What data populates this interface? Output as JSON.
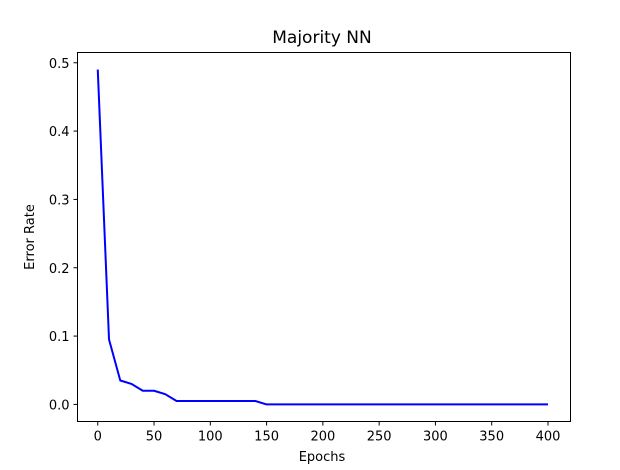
{
  "chart_data": {
    "type": "line",
    "title": "Majority NN",
    "xlabel": "Epochs",
    "ylabel": "Error Rate",
    "xlim": [
      -18,
      420
    ],
    "ylim": [
      -0.025,
      0.515
    ],
    "xticks": [
      0,
      50,
      100,
      150,
      200,
      250,
      300,
      350,
      400
    ],
    "xtick_labels": [
      "0",
      "50",
      "100",
      "150",
      "200",
      "250",
      "300",
      "350",
      "400"
    ],
    "yticks": [
      0.0,
      0.1,
      0.2,
      0.3,
      0.4,
      0.5
    ],
    "ytick_labels": [
      "0.0",
      "0.1",
      "0.2",
      "0.3",
      "0.4",
      "0.5"
    ],
    "grid": false,
    "series": [
      {
        "color": "#0000ff",
        "x": [
          0,
          10,
          20,
          30,
          40,
          50,
          60,
          70,
          80,
          90,
          100,
          110,
          120,
          130,
          140,
          150,
          160,
          170,
          180,
          190,
          200,
          250,
          300,
          350,
          400
        ],
        "y": [
          0.49,
          0.095,
          0.035,
          0.03,
          0.02,
          0.02,
          0.015,
          0.005,
          0.005,
          0.005,
          0.005,
          0.005,
          0.005,
          0.005,
          0.005,
          0.0,
          0.0,
          0.0,
          0.0,
          0.0,
          0.0,
          0.0,
          0.0,
          0.0,
          0.0
        ]
      }
    ]
  }
}
